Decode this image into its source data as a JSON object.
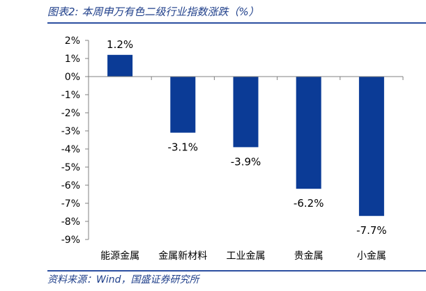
{
  "figure": {
    "title": "图表2:  本周申万有色二级行业指数涨跌（%）",
    "source": "资料来源：Wind，国盛证券研究所"
  },
  "colors": {
    "bar": "#0b3b96",
    "axis": "#808080",
    "rule": "#2b4ea0",
    "title_text": "#1f3f8a"
  },
  "chart_data": {
    "type": "bar",
    "categories": [
      "能源金属",
      "金属新材料",
      "工业金属",
      "贵金属",
      "小金属"
    ],
    "values": [
      1.2,
      -3.1,
      -3.9,
      -6.2,
      -7.7
    ],
    "data_labels": [
      "1.2%",
      "-3.1%",
      "-3.9%",
      "-6.2%",
      "-7.7%"
    ],
    "title": "",
    "xlabel": "",
    "ylabel": "",
    "ylim": [
      -9,
      2
    ],
    "yticks": [
      2,
      1,
      0,
      -1,
      -2,
      -3,
      -4,
      -5,
      -6,
      -7,
      -8,
      -9
    ],
    "ytick_labels": [
      "2%",
      "1%",
      "0%",
      "-1%",
      "-2%",
      "-3%",
      "-4%",
      "-5%",
      "-6%",
      "-7%",
      "-8%",
      "-9%"
    ],
    "grid": false,
    "legend": "none"
  }
}
